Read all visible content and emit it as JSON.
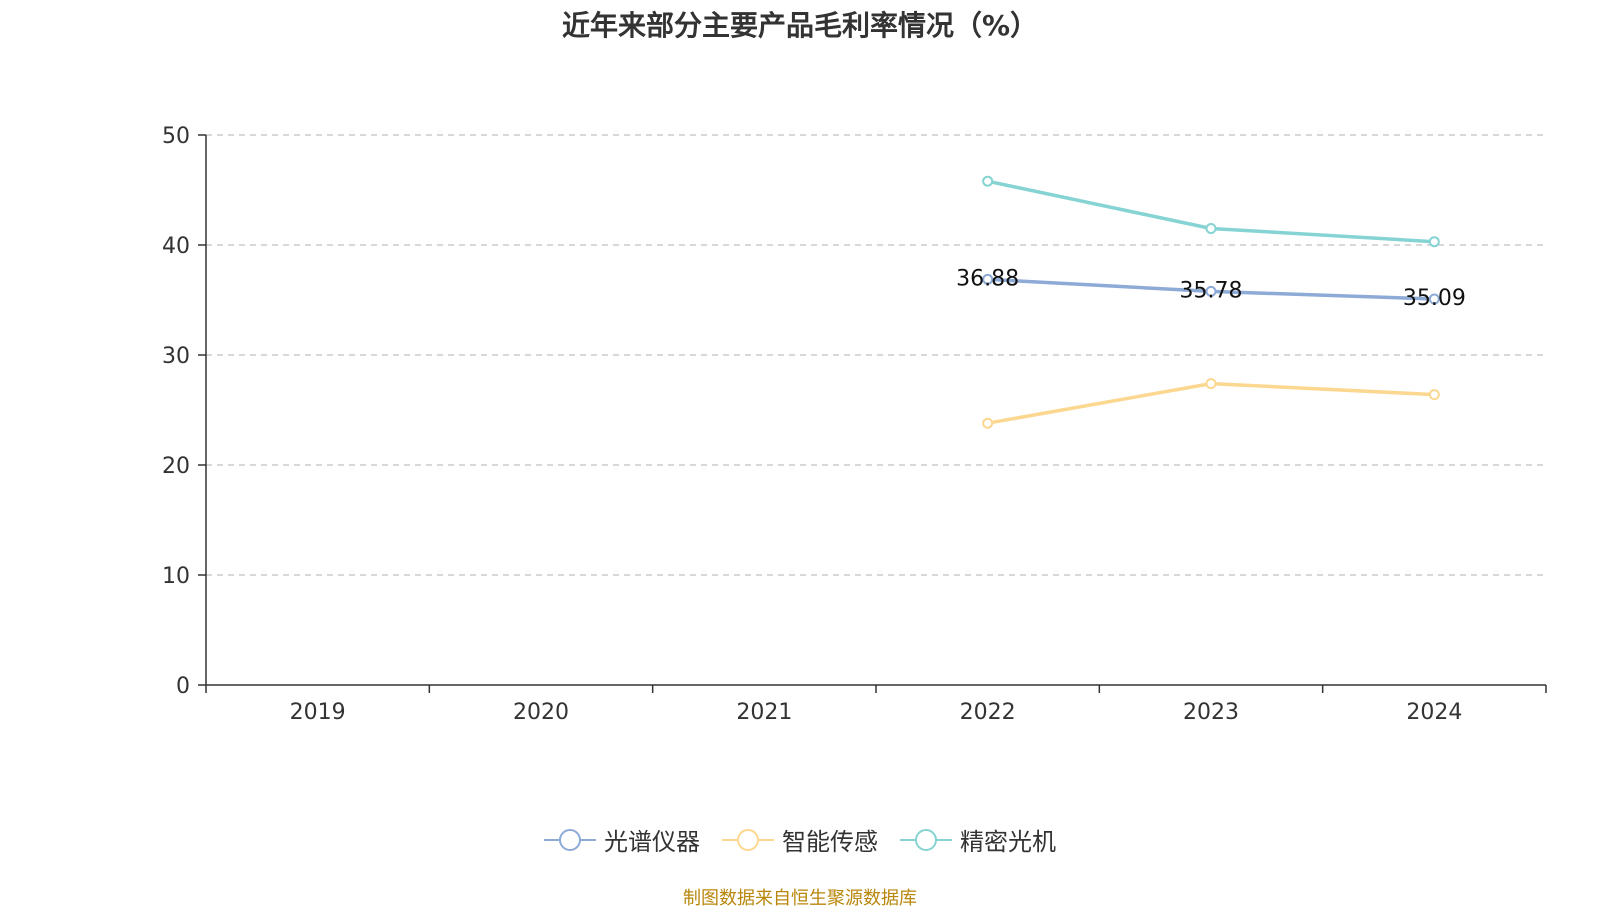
{
  "chart_data": {
    "type": "line",
    "title": "近年来部分主要产品毛利率情况（%）",
    "categories": [
      "2019",
      "2020",
      "2021",
      "2022",
      "2023",
      "2024"
    ],
    "ylim": [
      0,
      50
    ],
    "yticks": [
      0,
      10,
      20,
      30,
      40,
      50
    ],
    "grid": true,
    "legend_position": "bottom",
    "series": [
      {
        "name": "光谱仪器",
        "color": "#8eaad6",
        "values": [
          null,
          null,
          null,
          36.88,
          35.78,
          35.09
        ],
        "show_labels": true
      },
      {
        "name": "智能传感",
        "color": "#fbd78f",
        "values": [
          null,
          null,
          null,
          23.8,
          27.4,
          26.4
        ],
        "show_labels": false
      },
      {
        "name": "精密光机",
        "color": "#86d3d3",
        "values": [
          null,
          null,
          null,
          45.8,
          41.5,
          40.3
        ],
        "show_labels": false
      }
    ]
  },
  "source": "制图数据来自恒生聚源数据库"
}
